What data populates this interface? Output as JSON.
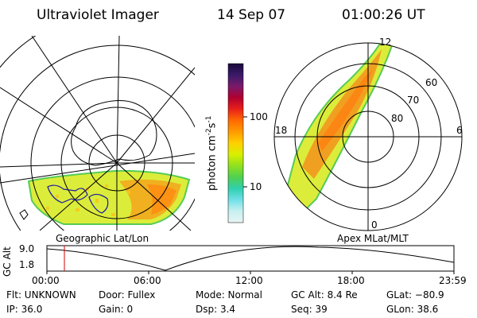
{
  "header": {
    "instrument": "Ultraviolet Imager",
    "date": "14 Sep 07",
    "time": "01:00:26 UT"
  },
  "colorbar": {
    "ticks": [
      "100",
      "10"
    ],
    "unit": "photon cm",
    "unit_exp1": "-2",
    "unit_s": "s",
    "unit_exp2": "-1",
    "stops": [
      "#1a0a3a",
      "#3a1a6a",
      "#7a1a6a",
      "#b00030",
      "#e8201a",
      "#ff6a00",
      "#ff9a00",
      "#ffd000",
      "#d8f000",
      "#90e020",
      "#50d050",
      "#30d0b0",
      "#70e0e8",
      "#c8f0f0",
      "#e8f4f4"
    ]
  },
  "left_map": {
    "label": "Geographic Lat/Lon"
  },
  "right_map": {
    "label": "Apex MLat/MLT",
    "mlt_labels": {
      "top": "12",
      "left": "18",
      "right": "6",
      "bottom": "0"
    },
    "lat_labels": [
      "60",
      "70",
      "80"
    ]
  },
  "altitude_plot": {
    "ylabel": "GC Alt",
    "yticks": [
      "9.0",
      "1.8"
    ],
    "xticks": [
      "00:00",
      "06:00",
      "12:00",
      "18:00",
      "23:59"
    ]
  },
  "info": {
    "flt": "Flt: UNKNOWN",
    "door": "Door: Fullex",
    "mode": "Mode: Normal",
    "gcalt": "GC Alt: 8.4 Re",
    "glat": "GLat: −80.9",
    "ip": "IP: 36.0",
    "gain": "Gain:   0",
    "dsp": "Dsp:    3.4",
    "seq": "Seq: 39",
    "glon": "GLon:  38.6"
  }
}
